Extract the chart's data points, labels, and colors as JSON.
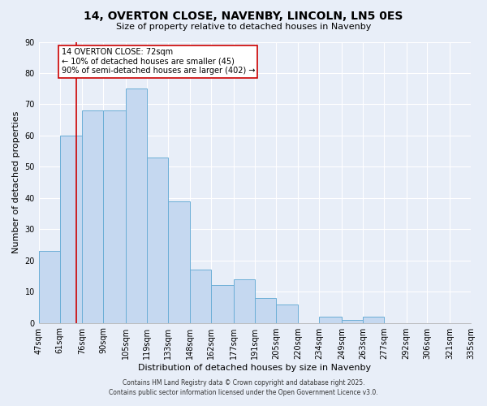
{
  "title": "14, OVERTON CLOSE, NAVENBY, LINCOLN, LN5 0ES",
  "subtitle": "Size of property relative to detached houses in Navenby",
  "xlabel": "Distribution of detached houses by size in Navenby",
  "ylabel": "Number of detached properties",
  "bar_edges": [
    47,
    61,
    76,
    90,
    105,
    119,
    133,
    148,
    162,
    177,
    191,
    205,
    220,
    234,
    249,
    263,
    277,
    292,
    306,
    321,
    335
  ],
  "bar_heights": [
    23,
    60,
    68,
    68,
    75,
    53,
    39,
    17,
    12,
    14,
    8,
    6,
    0,
    2,
    1,
    2,
    0,
    0,
    0,
    0
  ],
  "bar_color": "#c5d8f0",
  "bar_edge_color": "#6baed6",
  "vline_x": 72,
  "vline_color": "#cc0000",
  "annotation_lines": [
    "14 OVERTON CLOSE: 72sqm",
    "← 10% of detached houses are smaller (45)",
    "90% of semi-detached houses are larger (402) →"
  ],
  "annotation_box_color": "#ffffff",
  "annotation_box_edge_color": "#cc0000",
  "ylim": [
    0,
    90
  ],
  "background_color": "#e8eef8",
  "grid_color": "#ffffff",
  "footer_line1": "Contains HM Land Registry data © Crown copyright and database right 2025.",
  "footer_line2": "Contains public sector information licensed under the Open Government Licence v3.0.",
  "tick_labels": [
    "47sqm",
    "61sqm",
    "76sqm",
    "90sqm",
    "105sqm",
    "119sqm",
    "133sqm",
    "148sqm",
    "162sqm",
    "177sqm",
    "191sqm",
    "205sqm",
    "220sqm",
    "234sqm",
    "249sqm",
    "263sqm",
    "277sqm",
    "292sqm",
    "306sqm",
    "321sqm",
    "335sqm"
  ],
  "yticks": [
    0,
    10,
    20,
    30,
    40,
    50,
    60,
    70,
    80,
    90
  ]
}
